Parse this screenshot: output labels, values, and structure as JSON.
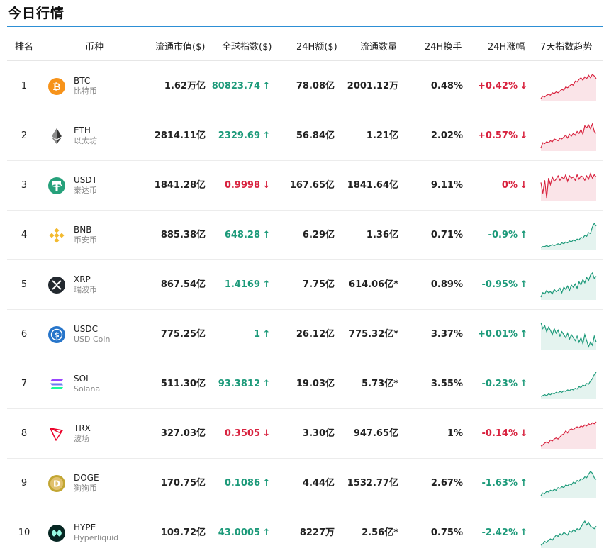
{
  "page": {
    "title": "今日行情"
  },
  "header": {
    "rank": "排名",
    "coin": "币种",
    "market_cap": "流通市值($)",
    "index": "全球指数($)",
    "volume": "24H额($)",
    "supply": "流通数量",
    "turnover": "24H换手",
    "change": "24H涨幅",
    "trend": "7天指数趋势"
  },
  "colors": {
    "up": "#1d9a7a",
    "down": "#d8233f",
    "accent": "#2d8fd5"
  },
  "rows": [
    {
      "rank": "1",
      "symbol": "BTC",
      "name": "比特币",
      "icon": "bitcoin-icon",
      "market_cap": "1.62万亿",
      "index": "80823.74",
      "index_dir": "up",
      "volume": "78.08亿",
      "supply": "2001.12万",
      "turnover": "0.48%",
      "change": "+0.42%",
      "change_dir": "down",
      "trend": [
        5,
        8,
        7,
        9,
        10,
        9,
        12,
        11,
        13,
        12,
        14,
        16,
        15,
        19,
        18,
        20,
        22,
        21,
        26,
        25,
        28,
        30,
        27,
        31,
        29,
        33,
        30,
        34,
        32,
        29
      ]
    },
    {
      "rank": "2",
      "symbol": "ETH",
      "name": "以太坊",
      "icon": "ethereum-icon",
      "market_cap": "2814.11亿",
      "index": "2329.69",
      "index_dir": "up",
      "volume": "56.84亿",
      "supply": "1.21亿",
      "turnover": "2.02%",
      "change": "+0.57%",
      "change_dir": "down",
      "trend": [
        8,
        14,
        13,
        15,
        14,
        16,
        15,
        18,
        17,
        16,
        19,
        18,
        20,
        22,
        19,
        23,
        21,
        24,
        22,
        26,
        24,
        28,
        23,
        32,
        30,
        33,
        29,
        34,
        26,
        24
      ]
    },
    {
      "rank": "3",
      "symbol": "USDT",
      "name": "泰达币",
      "icon": "tether-icon",
      "market_cap": "1841.28亿",
      "index": "0.9998",
      "index_dir": "down",
      "volume": "167.65亿",
      "supply": "1841.64亿",
      "turnover": "9.11%",
      "change": "0%",
      "change_dir": "down",
      "trend": [
        22,
        12,
        24,
        8,
        26,
        20,
        27,
        23,
        25,
        28,
        24,
        27,
        25,
        29,
        23,
        28,
        26,
        27,
        24,
        29,
        25,
        28,
        27,
        24,
        28,
        25,
        30,
        26,
        29,
        27
      ]
    },
    {
      "rank": "4",
      "symbol": "BNB",
      "name": "币安币",
      "icon": "binance-icon",
      "market_cap": "885.38亿",
      "index": "648.28",
      "index_dir": "up",
      "volume": "6.29亿",
      "supply": "1.36亿",
      "turnover": "0.71%",
      "change": "-0.9%",
      "change_dir": "up",
      "trend": [
        6,
        7,
        7,
        8,
        7,
        8,
        9,
        8,
        9,
        10,
        9,
        11,
        10,
        12,
        11,
        13,
        12,
        14,
        13,
        15,
        14,
        17,
        16,
        19,
        18,
        22,
        21,
        28,
        32,
        29
      ]
    },
    {
      "rank": "5",
      "symbol": "XRP",
      "name": "瑞波币",
      "icon": "xrp-icon",
      "market_cap": "867.54亿",
      "index": "1.4169",
      "index_dir": "up",
      "volume": "7.75亿",
      "supply": "614.06亿*",
      "turnover": "0.89%",
      "change": "-0.95%",
      "change_dir": "up",
      "trend": [
        8,
        12,
        11,
        14,
        12,
        13,
        11,
        15,
        13,
        14,
        16,
        12,
        17,
        15,
        18,
        14,
        19,
        17,
        20,
        16,
        22,
        19,
        24,
        21,
        26,
        23,
        28,
        30,
        25,
        27
      ]
    },
    {
      "rank": "6",
      "symbol": "USDC",
      "name": "USD Coin",
      "icon": "usdc-icon",
      "market_cap": "775.25亿",
      "index": "1",
      "index_dir": "up",
      "volume": "26.12亿",
      "supply": "775.32亿*",
      "turnover": "3.37%",
      "change": "+0.01%",
      "change_dir": "up",
      "trend": [
        30,
        26,
        28,
        24,
        27,
        25,
        22,
        26,
        23,
        25,
        21,
        24,
        22,
        20,
        23,
        19,
        22,
        20,
        18,
        21,
        17,
        20,
        16,
        22,
        18,
        14,
        17,
        15,
        21,
        17
      ]
    },
    {
      "rank": "7",
      "symbol": "SOL",
      "name": "Solana",
      "icon": "solana-icon",
      "market_cap": "511.30亿",
      "index": "93.3812",
      "index_dir": "up",
      "volume": "19.03亿",
      "supply": "5.73亿*",
      "turnover": "3.55%",
      "change": "-0.23%",
      "change_dir": "up",
      "trend": [
        5,
        6,
        7,
        6,
        8,
        7,
        9,
        8,
        10,
        9,
        11,
        10,
        12,
        11,
        13,
        12,
        14,
        13,
        15,
        14,
        17,
        16,
        19,
        18,
        21,
        20,
        24,
        27,
        32,
        35
      ]
    },
    {
      "rank": "8",
      "symbol": "TRX",
      "name": "波场",
      "icon": "tron-icon",
      "market_cap": "327.03亿",
      "index": "0.3505",
      "index_dir": "down",
      "volume": "3.30亿",
      "supply": "947.65亿",
      "turnover": "1%",
      "change": "-0.14%",
      "change_dir": "down",
      "trend": [
        6,
        7,
        9,
        10,
        9,
        12,
        11,
        13,
        14,
        13,
        15,
        17,
        18,
        21,
        19,
        22,
        23,
        22,
        24,
        25,
        24,
        26,
        25,
        27,
        26,
        28,
        27,
        29,
        28,
        30
      ]
    },
    {
      "rank": "9",
      "symbol": "DOGE",
      "name": "狗狗币",
      "icon": "dogecoin-icon",
      "market_cap": "170.75亿",
      "index": "0.1086",
      "index_dir": "up",
      "volume": "4.44亿",
      "supply": "1532.77亿",
      "turnover": "2.67%",
      "change": "-1.63%",
      "change_dir": "up",
      "trend": [
        6,
        9,
        8,
        11,
        10,
        12,
        11,
        13,
        12,
        15,
        14,
        16,
        15,
        18,
        17,
        19,
        18,
        21,
        20,
        23,
        22,
        25,
        24,
        27,
        26,
        30,
        33,
        31,
        26,
        24
      ]
    },
    {
      "rank": "10",
      "symbol": "HYPE",
      "name": "Hyperliquid",
      "icon": "hyperliquid-icon",
      "market_cap": "109.72亿",
      "index": "43.0005",
      "index_dir": "up",
      "volume": "8227万",
      "supply": "2.56亿*",
      "turnover": "0.75%",
      "change": "-2.42%",
      "change_dir": "up",
      "trend": [
        14,
        15,
        17,
        16,
        18,
        19,
        18,
        20,
        22,
        21,
        23,
        22,
        24,
        23,
        22,
        25,
        24,
        26,
        25,
        27,
        26,
        28,
        31,
        33,
        30,
        32,
        29,
        28,
        27,
        29
      ]
    }
  ]
}
